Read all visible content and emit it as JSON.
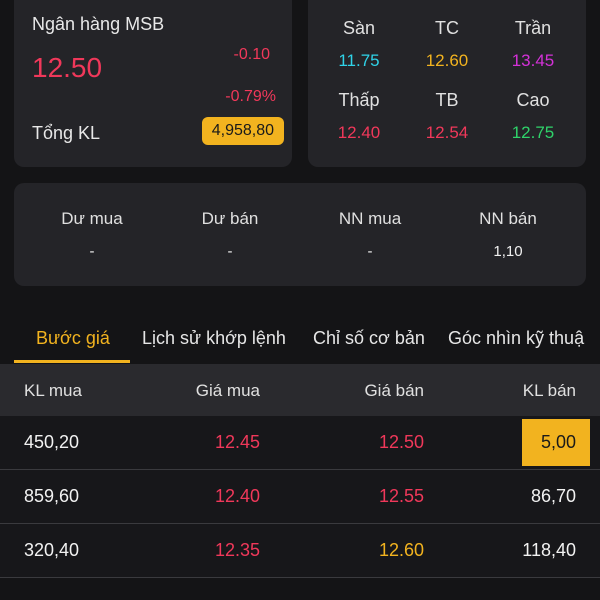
{
  "stock": {
    "name": "Ngân hàng MSB",
    "price": "12.50",
    "change": "-0.10",
    "change_pct": "-0.79%",
    "volume_label": "Tổng KL",
    "volume": "4,958,80"
  },
  "price_levels": [
    {
      "label": "Sàn",
      "value": "11.75",
      "color": "#2fd3e8"
    },
    {
      "label": "TC",
      "value": "12.60",
      "color": "#f2b31f"
    },
    {
      "label": "Trần",
      "value": "13.45",
      "color": "#d431d8"
    },
    {
      "label": "Thấp",
      "value": "12.40",
      "color": "#f0385a"
    },
    {
      "label": "TB",
      "value": "12.54",
      "color": "#f0385a"
    },
    {
      "label": "Cao",
      "value": "12.75",
      "color": "#2fd36a"
    }
  ],
  "info": [
    {
      "label": "Dư mua",
      "value": "-"
    },
    {
      "label": "Dư bán",
      "value": "-"
    },
    {
      "label": "NN mua",
      "value": "-"
    },
    {
      "label": "NN bán",
      "value": "1,10"
    }
  ],
  "tabs": [
    {
      "label": "Bước giá",
      "active": true
    },
    {
      "label": "Lịch sử khớp lệnh",
      "active": false
    },
    {
      "label": "Chỉ số cơ bản",
      "active": false
    },
    {
      "label": "Góc nhìn kỹ thuậ",
      "active": false
    }
  ],
  "orderbook": {
    "headers": [
      "KL mua",
      "Giá mua",
      "Giá bán",
      "KL bán"
    ],
    "rows": [
      {
        "buy_vol": "450,20",
        "buy_price": "12.45",
        "sell_price": "12.50",
        "sell_vol": "5,00"
      },
      {
        "buy_vol": "859,60",
        "buy_price": "12.40",
        "sell_price": "12.55",
        "sell_vol": "86,70"
      },
      {
        "buy_vol": "320,40",
        "buy_price": "12.35",
        "sell_price": "12.60",
        "sell_vol": "118,40"
      }
    ]
  }
}
